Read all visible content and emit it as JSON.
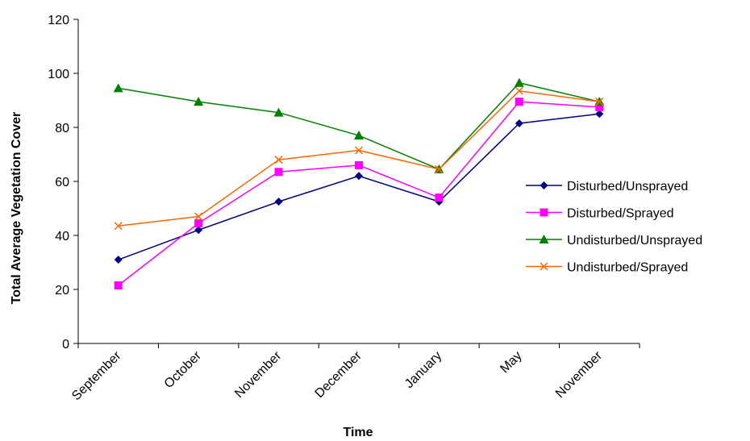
{
  "chart_data": {
    "type": "line",
    "xlabel": "Time",
    "ylabel": "Total Average Vegetation Cover",
    "categories": [
      "September",
      "October",
      "November",
      "December",
      "January",
      "May",
      "November"
    ],
    "ylim": [
      0,
      120
    ],
    "yticks": [
      0,
      20,
      40,
      60,
      80,
      100,
      120
    ],
    "grid": false,
    "legend_position": "right",
    "series": [
      {
        "name": "Disturbed/Unsprayed",
        "color": "#000080",
        "marker": "diamond",
        "values": [
          31,
          42,
          52.5,
          62,
          52.5,
          81.5,
          85
        ]
      },
      {
        "name": "Disturbed/Sprayed",
        "color": "#FF00FF",
        "marker": "square",
        "values": [
          21.5,
          44.5,
          63.5,
          66,
          54,
          89.5,
          87.5
        ]
      },
      {
        "name": "Undisturbed/Unsprayed",
        "color": "#008000",
        "marker": "triangle",
        "values": [
          94.5,
          89.5,
          85.5,
          77,
          64.5,
          96.5,
          89.5
        ]
      },
      {
        "name": "Undisturbed/Sprayed",
        "color": "#FF6600",
        "marker": "x",
        "values": [
          43.5,
          47,
          68,
          71.5,
          64.5,
          93.5,
          89.5
        ]
      }
    ]
  }
}
